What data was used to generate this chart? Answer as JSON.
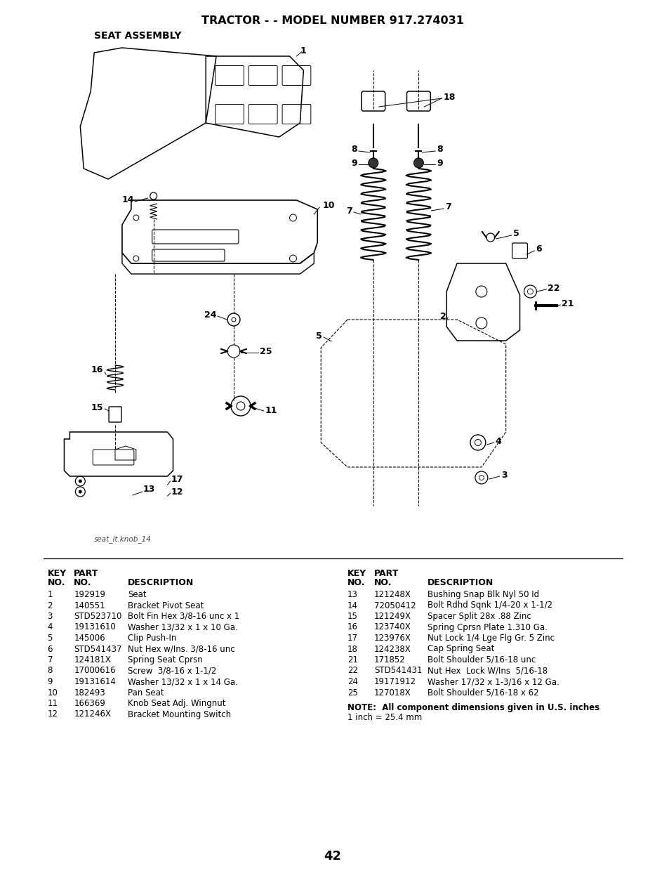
{
  "title": "TRACTOR - - MODEL NUMBER 917.274031",
  "subtitle": "SEAT ASSEMBLY",
  "page_number": "42",
  "image_label": "seat_lt.knob_14",
  "background_color": "#ffffff",
  "text_color": "#000000",
  "left_parts": [
    [
      "1",
      "192919",
      "Seat"
    ],
    [
      "2",
      "140551",
      "Bracket Pivot Seat"
    ],
    [
      "3",
      "STD523710",
      "Bolt Fin Hex 3/8-16 unc x 1"
    ],
    [
      "4",
      "19131610",
      "Washer 13/32 x 1 x 10 Ga."
    ],
    [
      "5",
      "145006",
      "Clip Push-In"
    ],
    [
      "6",
      "STD541437",
      "Nut Hex w/Ins. 3/8-16 unc"
    ],
    [
      "7",
      "124181X",
      "Spring Seat Cprsn"
    ],
    [
      "8",
      "17000616",
      "Screw  3/8-16 x 1-1/2"
    ],
    [
      "9",
      "19131614",
      "Washer 13/32 x 1 x 14 Ga."
    ],
    [
      "10",
      "182493",
      "Pan Seat"
    ],
    [
      "11",
      "166369",
      "Knob Seat Adj. Wingnut"
    ],
    [
      "12",
      "121246X",
      "Bracket Mounting Switch"
    ]
  ],
  "right_parts": [
    [
      "13",
      "121248X",
      "Bushing Snap Blk Nyl 50 Id"
    ],
    [
      "14",
      "72050412",
      "Bolt Rdhd Sqnk 1/4-20 x 1-1/2"
    ],
    [
      "15",
      "121249X",
      "Spacer Split 28x .88 Zinc"
    ],
    [
      "16",
      "123740X",
      "Spring Cprsn Plate 1.310 Ga."
    ],
    [
      "17",
      "123976X",
      "Nut Lock 1/4 Lge Flg Gr. 5 Zinc"
    ],
    [
      "18",
      "124238X",
      "Cap Spring Seat"
    ],
    [
      "21",
      "171852",
      "Bolt Shoulder 5/16-18 unc"
    ],
    [
      "22",
      "STD541431",
      "Nut Hex  Lock W/Ins  5/16-18"
    ],
    [
      "24",
      "19171912",
      "Washer 17/32 x 1-3/16 x 12 Ga."
    ],
    [
      "25",
      "127018X",
      "Bolt Shoulder 5/16-18 x 62"
    ]
  ],
  "note": "NOTE:  All component dimensions given in U.S. inches\n1 inch = 25.4 mm"
}
